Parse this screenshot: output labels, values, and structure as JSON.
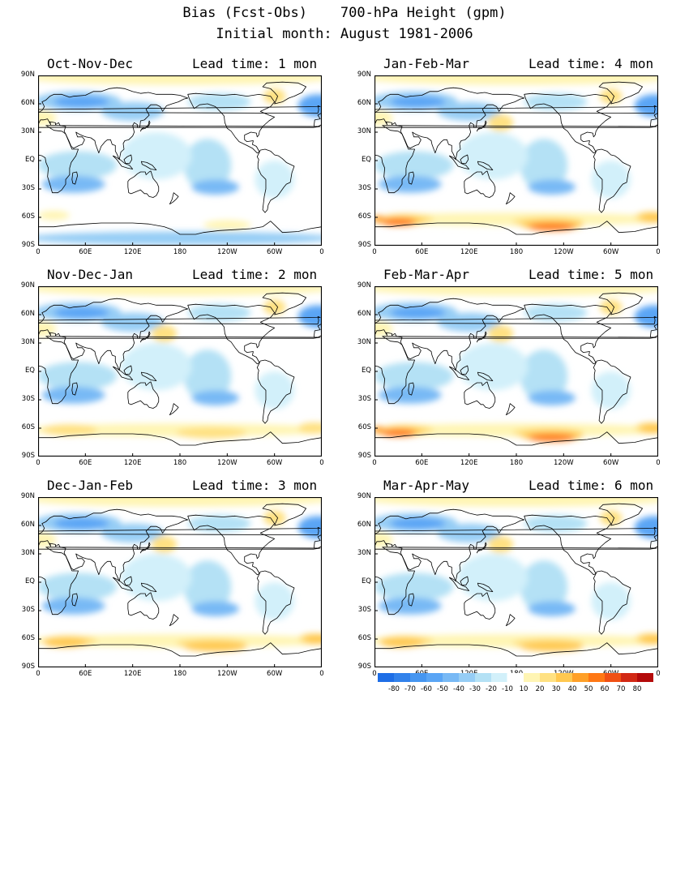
{
  "title": {
    "line1": "Bias (Fcst-Obs)    700-hPa Height (gpm)",
    "line2": "Initial month: August 1981-2006"
  },
  "lat_labels": [
    "90N",
    "60N",
    "30N",
    "EQ",
    "30S",
    "60S",
    "90S"
  ],
  "lon_labels": [
    "0",
    "60E",
    "120E",
    "180",
    "120W",
    "60W",
    "0"
  ],
  "panels": [
    {
      "season": "Oct-Nov-Dec",
      "lead": "Lead time: 1 mon",
      "so_band": 10
    },
    {
      "season": "Jan-Feb-Mar",
      "lead": "Lead time: 4 mon",
      "so_band": 60
    },
    {
      "season": "Nov-Dec-Jan",
      "lead": "Lead time: 2 mon",
      "so_band": 25
    },
    {
      "season": "Feb-Mar-Apr",
      "lead": "Lead time: 5 mon",
      "so_band": 60
    },
    {
      "season": "Dec-Jan-Feb",
      "lead": "Lead time: 3 mon",
      "so_band": 40
    },
    {
      "season": "Mar-Apr-May",
      "lead": "Lead time: 6 mon",
      "so_band": 45
    }
  ],
  "colorbar": {
    "labels": [
      "-80",
      "-70",
      "-60",
      "-50",
      "-40",
      "-30",
      "-20",
      "-10",
      "10",
      "20",
      "30",
      "40",
      "50",
      "60",
      "70",
      "80"
    ],
    "colors": [
      "#1e6ee6",
      "#3282eb",
      "#4696f0",
      "#5aa5f5",
      "#78b9f5",
      "#96cdf5",
      "#b4e1f5",
      "#d2f0fa",
      "#ffffff",
      "#fff5b4",
      "#ffe182",
      "#ffc850",
      "#ffa028",
      "#ff7814",
      "#f05014",
      "#d22814",
      "#b40a0a"
    ]
  }
}
